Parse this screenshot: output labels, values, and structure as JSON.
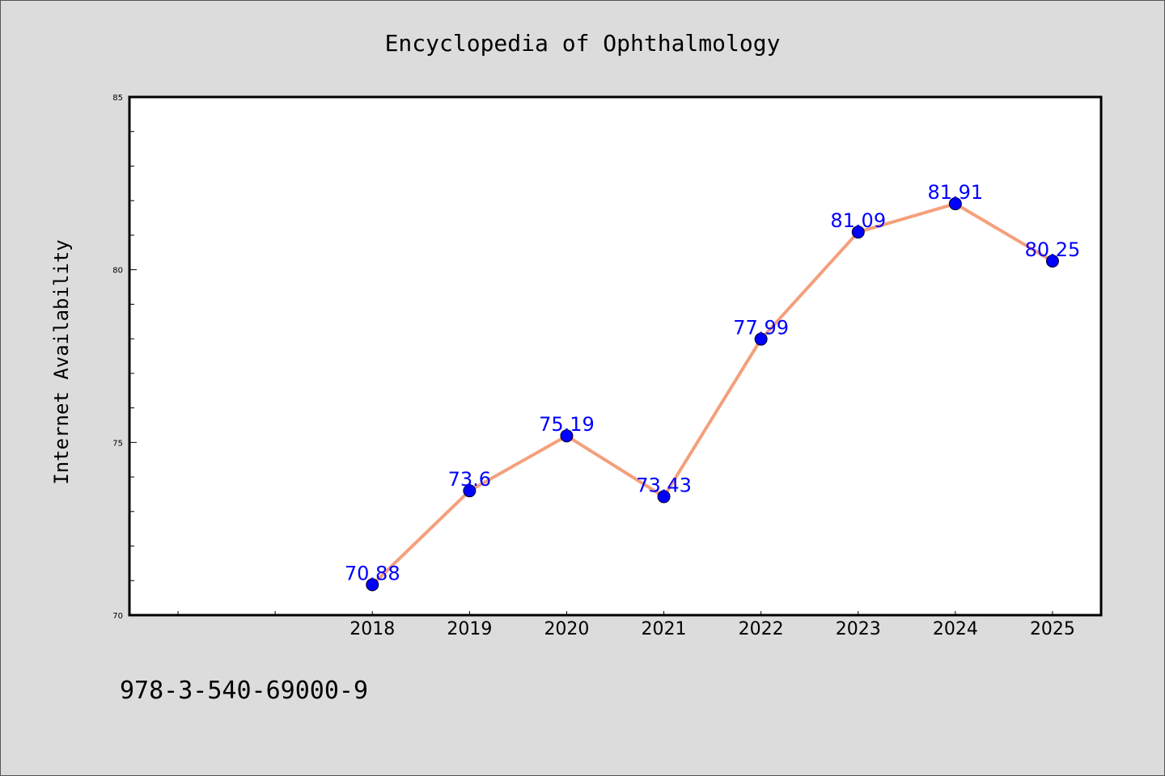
{
  "chart_data": {
    "type": "line",
    "title": "Encyclopedia of Ophthalmology",
    "xlabel": "",
    "ylabel": "Internet Availability",
    "x": [
      "2018",
      "2019",
      "2020",
      "2021",
      "2022",
      "2023",
      "2024",
      "2025"
    ],
    "series": [
      {
        "values": [
          70.88,
          73.6,
          75.19,
          73.43,
          77.99,
          81.09,
          81.91,
          80.25
        ],
        "labels": [
          "70.88",
          "73.6",
          "75.19",
          "73.43",
          "77.99",
          "81.09",
          "81.91",
          "80.25"
        ]
      }
    ],
    "ylim": [
      70,
      85
    ],
    "yticks": [
      70,
      75,
      80,
      85
    ],
    "ytick_labels": [
      "70",
      "75",
      "80",
      "85"
    ],
    "x_slot_range": [
      2015.5,
      2025.5
    ],
    "grid": false,
    "legend": "none",
    "colors": {
      "line": "#f4a07c",
      "marker": "#0000ff",
      "data_label": "#0000ff",
      "background": "#dcdcdc",
      "plot_area": "#ffffff"
    }
  },
  "footnote": "978-3-540-69000-9"
}
